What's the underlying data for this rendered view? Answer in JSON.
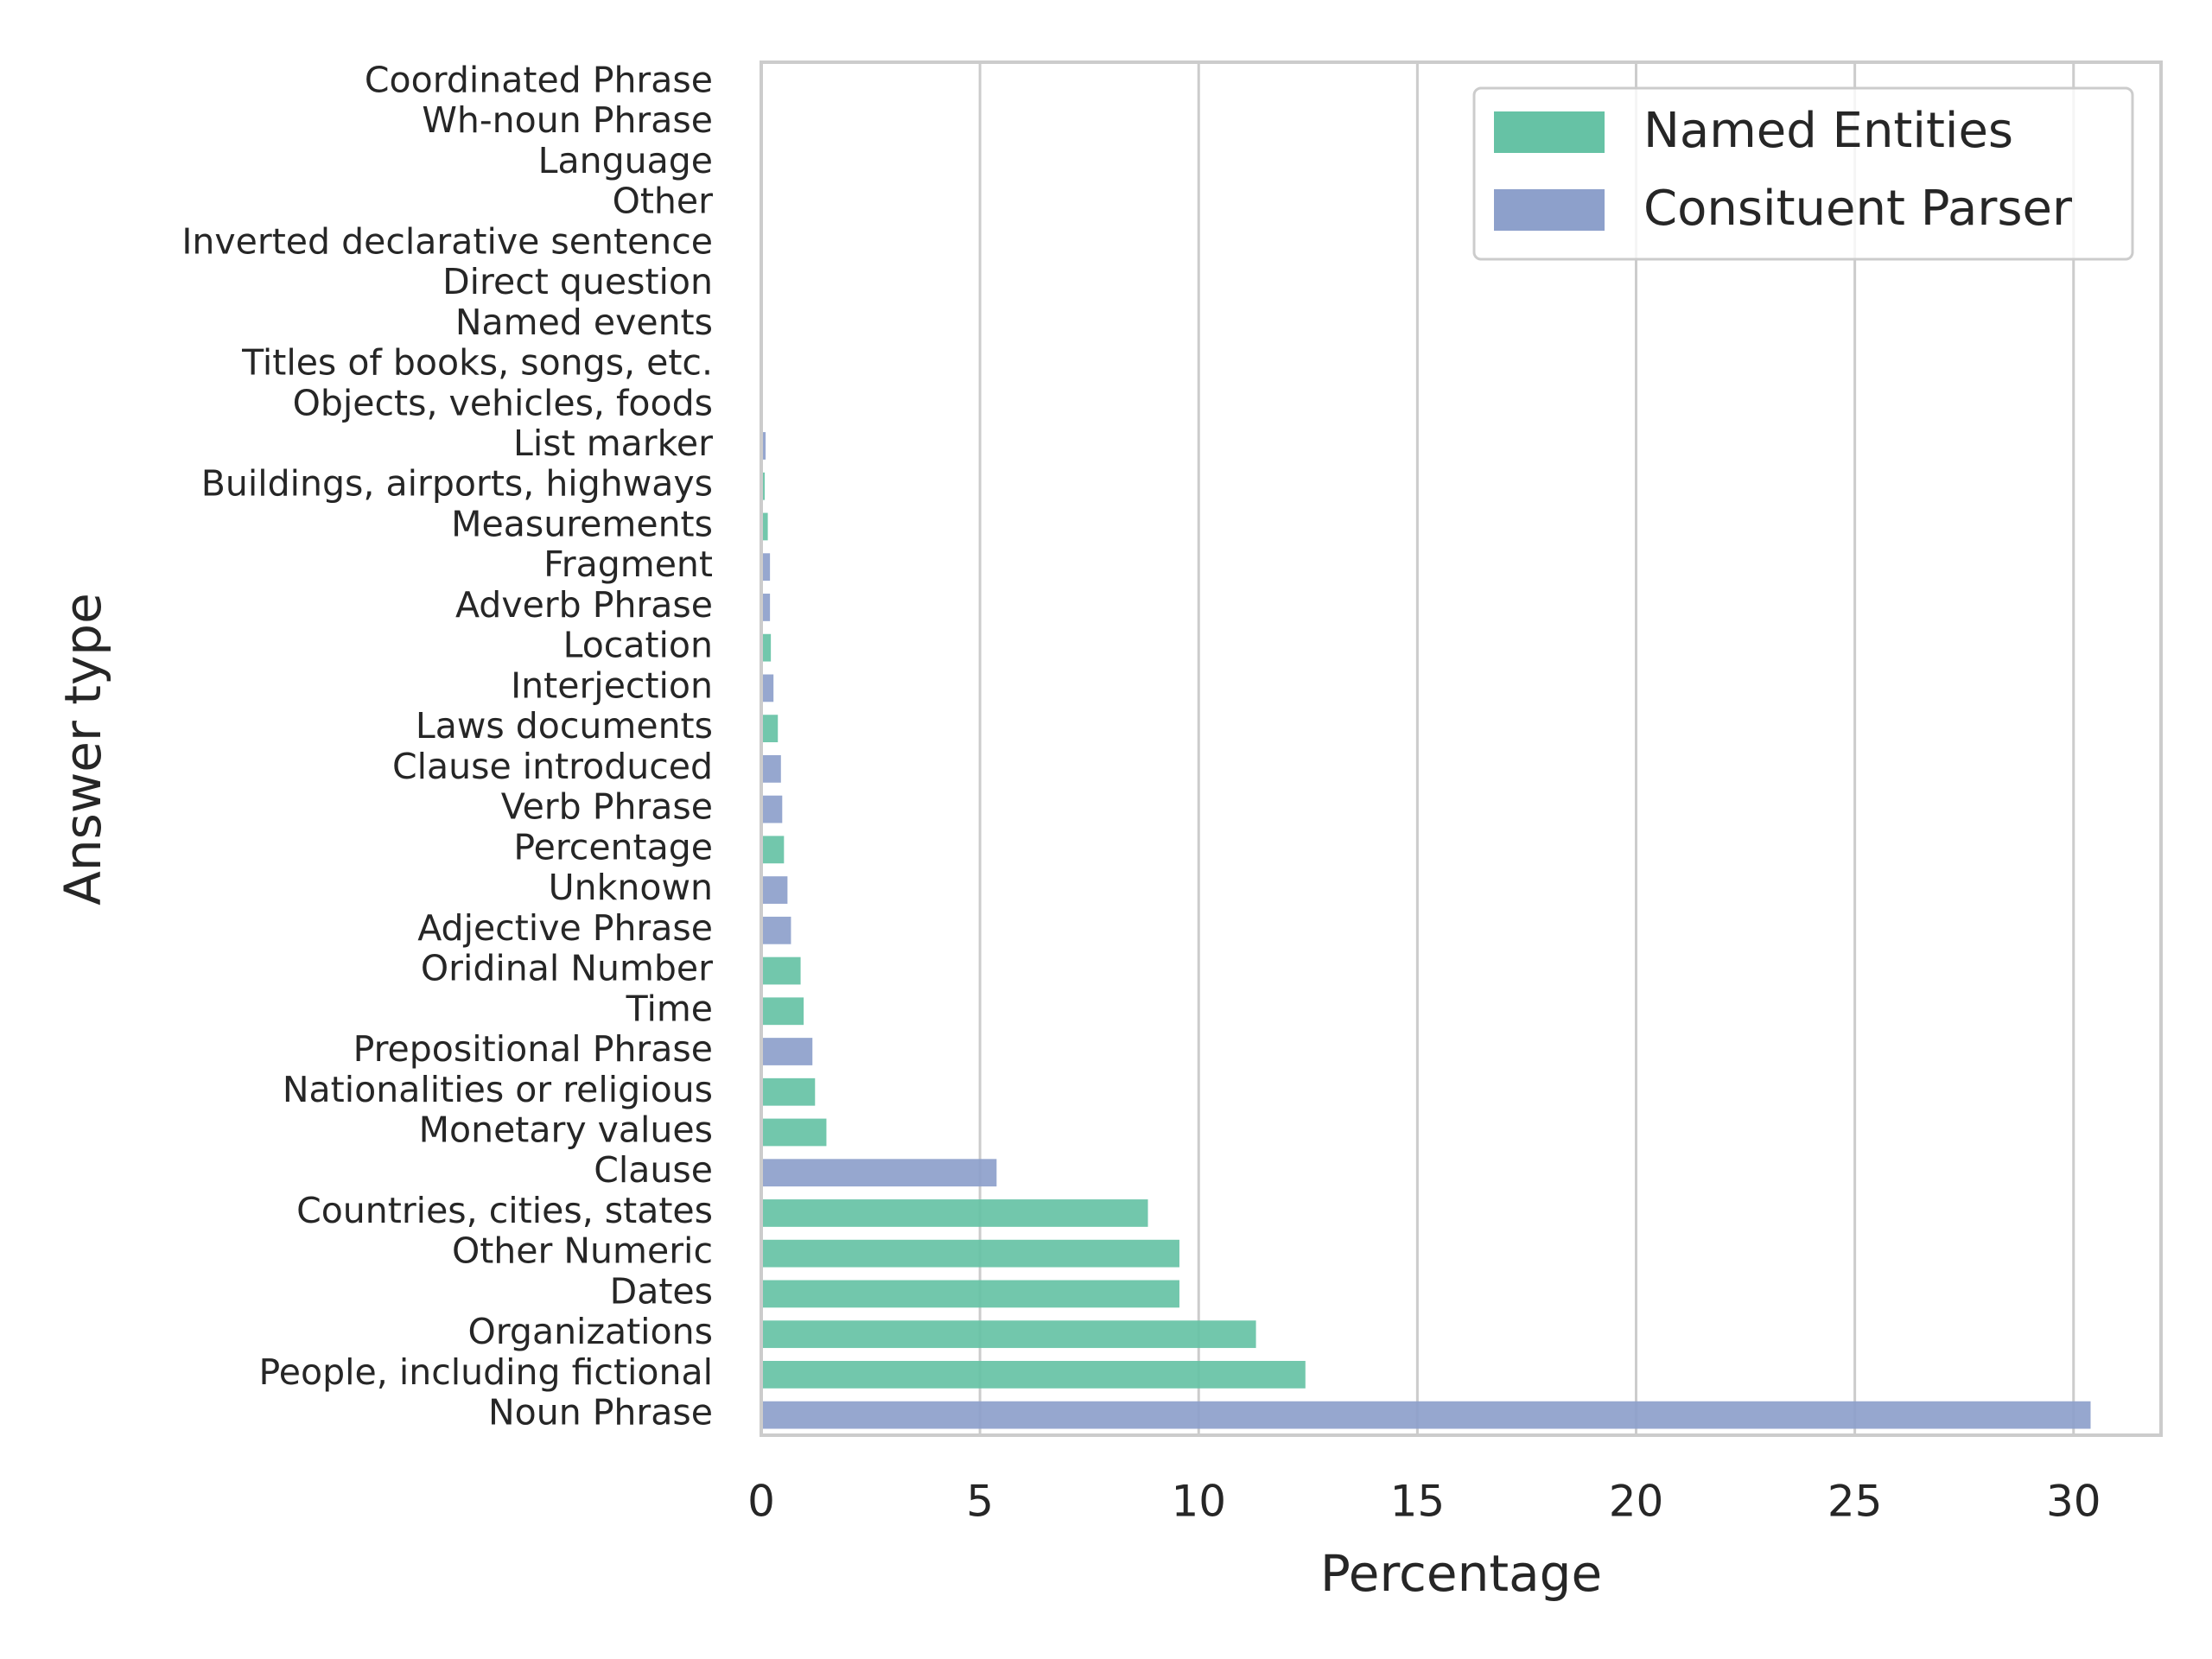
{
  "chart_data": {
    "type": "barh",
    "xlabel": "Percentage",
    "ylabel": "Answer type",
    "categories": [
      "Coordinated Phrase",
      "Wh-noun Phrase",
      "Language",
      "Other",
      "Inverted declarative sentence",
      "Direct question",
      "Named events",
      "Titles of books, songs, etc.",
      "Objects, vehicles, foods",
      "List marker",
      "Buildings, airports, highways",
      "Measurements",
      "Fragment",
      "Adverb Phrase",
      "Location",
      "Interjection",
      "Laws documents",
      "Clause introduced",
      "Verb Phrase",
      "Percentage",
      "Unknown",
      "Adjective Phrase",
      "Oridinal Number",
      "Time",
      "Prepositional Phrase",
      "Nationalities or religious",
      "Monetary values",
      "Clause",
      "Countries, cities, states",
      "Other Numeric",
      "Dates",
      "Organizations",
      "People, including fictional",
      "Noun Phrase"
    ],
    "series": [
      {
        "name": "Named Entities",
        "color": "#66c2a5",
        "values": [
          null,
          null,
          0,
          null,
          null,
          null,
          0,
          0,
          0,
          null,
          0.08,
          0.15,
          null,
          null,
          0.22,
          null,
          0.38,
          null,
          null,
          0.52,
          null,
          null,
          0.9,
          0.97,
          null,
          1.23,
          1.49,
          null,
          8.84,
          9.56,
          9.56,
          11.31,
          12.44,
          null
        ]
      },
      {
        "name": "Consituent Parser",
        "color": "#8da0cb",
        "values": [
          0,
          0,
          null,
          0,
          0,
          0,
          null,
          null,
          null,
          0.1,
          null,
          null,
          0.2,
          0.2,
          null,
          0.28,
          null,
          0.45,
          0.48,
          null,
          0.6,
          0.68,
          null,
          null,
          1.17,
          null,
          null,
          5.38,
          null,
          null,
          null,
          null,
          null,
          30.39
        ]
      }
    ],
    "xlim": [
      0,
      32
    ],
    "xticks": [
      0,
      5,
      10,
      15,
      20,
      25,
      30
    ],
    "grid": true,
    "legend": "upper right"
  }
}
